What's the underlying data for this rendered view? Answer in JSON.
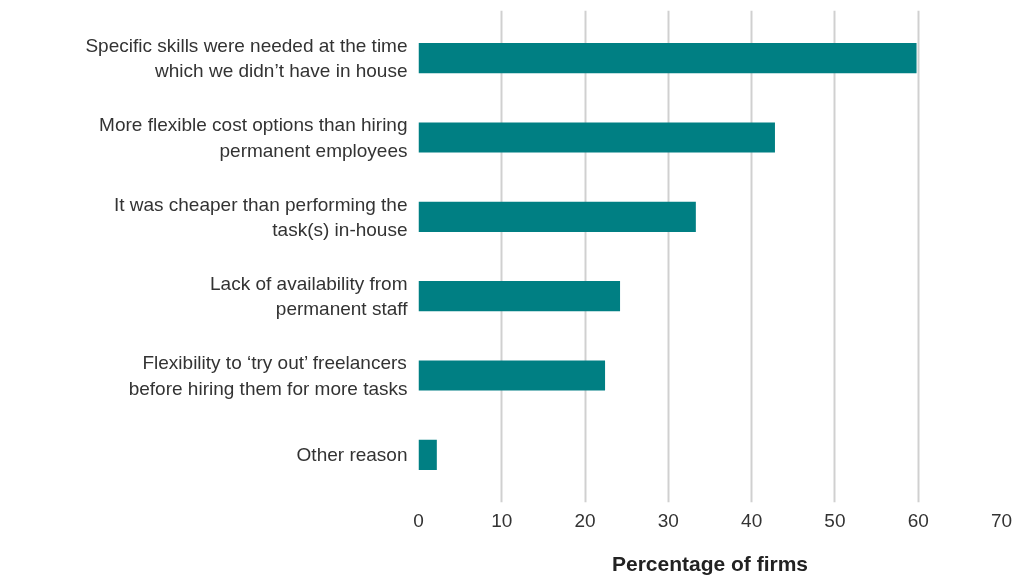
{
  "chart_data": {
    "type": "bar",
    "orientation": "horizontal",
    "xlabel": "Percentage of firms",
    "categories": [
      "Specific skills were needed at the time\nwhich we didn’t have in house",
      "More flexible cost options than hiring\npermanent employees",
      "It was cheaper than performing the\ntask(s) in-house",
      "Lack of availability from\npermanent staff",
      "Flexibility to ‘try out’ freelancers\nbefore hiring them for more tasks",
      "Other reason"
    ],
    "values": [
      59.8,
      42.8,
      33.3,
      24.2,
      22.4,
      2.2
    ],
    "color": "#007f83",
    "xlim": [
      0,
      70
    ],
    "xticks": [
      0,
      10,
      20,
      30,
      40,
      50,
      60,
      70
    ],
    "grid": "x"
  }
}
